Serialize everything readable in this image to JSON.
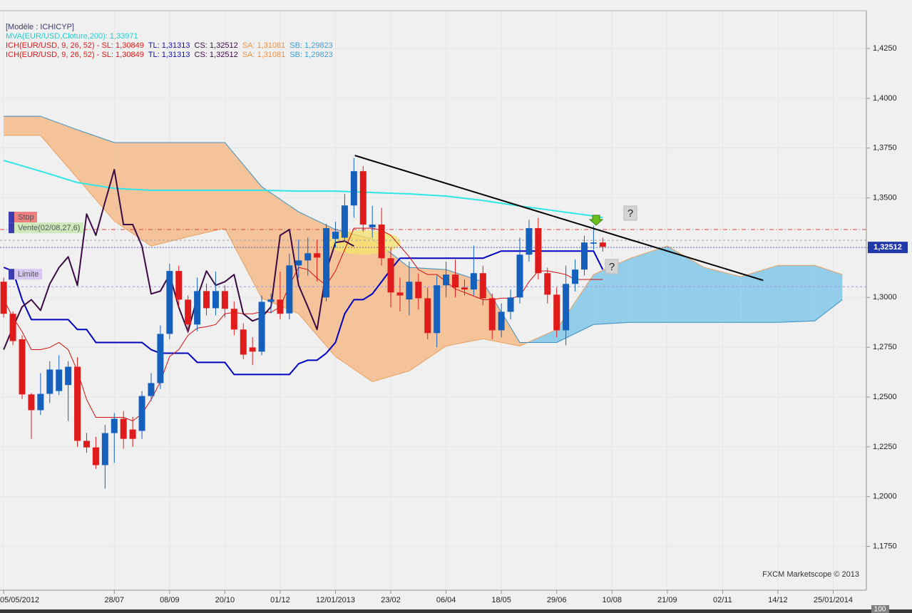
{
  "chart_data": {
    "type": "candlestick",
    "header": [
      [
        {
          "text": "[Modèle : ICHICYP]",
          "color": "#3a3a6a"
        }
      ],
      [
        {
          "text": "MVA(EUR/USD,Cloture,200): 1,33971",
          "color": "#22cccc"
        }
      ],
      [
        {
          "text": "ICH(EUR/USD, 9, 26, 52) -  SL: 1,30849",
          "color": "#e01818"
        },
        {
          "text": "TL: 1,31313",
          "color": "#1010b0"
        },
        {
          "text": "CS: 1,32512",
          "color": "#3b0a45"
        },
        {
          "text": "SA: 1,31081",
          "color": "#f09040"
        },
        {
          "text": "SB: 1,29823",
          "color": "#3aa0d8"
        }
      ],
      [
        {
          "text": "ICH(EUR/USD, 9, 26, 52) -  SL: 1,30849",
          "color": "#e01818"
        },
        {
          "text": "TL: 1,31313",
          "color": "#1010b0"
        },
        {
          "text": "CS: 1,32512",
          "color": "#3b0a45"
        },
        {
          "text": "SA: 1,31081",
          "color": "#f09040"
        },
        {
          "text": "SB: 1,29823",
          "color": "#3aa0d8"
        }
      ]
    ],
    "watermark": "FXCM Marketscope © 2013",
    "scale_box": "100",
    "grid": true,
    "xlim": [
      -0.4,
      93.6
    ],
    "xticks": [
      {
        "value": 0,
        "label": "05/05/2012"
      },
      {
        "value": 12,
        "label": "28/07"
      },
      {
        "value": 18,
        "label": "08/09"
      },
      {
        "value": 24,
        "label": "20/10"
      },
      {
        "value": 30,
        "label": "01/12"
      },
      {
        "value": 36,
        "label": "12/01/2013"
      },
      {
        "value": 42,
        "label": "23/02"
      },
      {
        "value": 48,
        "label": "06/04"
      },
      {
        "value": 54,
        "label": "18/05"
      },
      {
        "value": 60,
        "label": "29/06"
      },
      {
        "value": 66,
        "label": "10/08"
      },
      {
        "value": 72,
        "label": "21/09"
      },
      {
        "value": 78,
        "label": "02/11"
      },
      {
        "value": 84,
        "label": "14/12"
      },
      {
        "value": 90,
        "label": "25/01/2014"
      }
    ],
    "ylim": [
      1.153,
      1.444
    ],
    "yticks": [
      {
        "value": 1.175,
        "label": "1,1750"
      },
      {
        "value": 1.2,
        "label": "1,2000"
      },
      {
        "value": 1.225,
        "label": "1,2250"
      },
      {
        "value": 1.25,
        "label": "1,2500"
      },
      {
        "value": 1.275,
        "label": "1,2750"
      },
      {
        "value": 1.3,
        "label": "1,3000"
      },
      {
        "value": 1.325,
        "label": "1,3250"
      },
      {
        "value": 1.35,
        "label": "1,3500"
      },
      {
        "value": 1.375,
        "label": "1,3750"
      },
      {
        "value": 1.4,
        "label": "1,4000"
      },
      {
        "value": 1.425,
        "label": "1,4250"
      }
    ],
    "cloud": {
      "x": [
        0,
        4,
        8,
        12,
        16,
        20,
        24,
        28,
        32,
        36,
        40,
        44,
        48,
        52,
        56,
        60,
        64,
        68,
        72,
        76,
        80,
        84,
        88,
        91
      ],
      "senkou_a": [
        1.3814,
        1.3814,
        1.3599,
        1.3384,
        1.3258,
        1.3305,
        1.3348,
        1.2996,
        1.2918,
        1.2703,
        1.2577,
        1.2631,
        1.2756,
        1.2792,
        1.2756,
        1.2839,
        1.3115,
        1.3197,
        1.3258,
        1.3151,
        1.3104,
        1.3161,
        1.3161,
        1.3115
      ],
      "senkou_b": [
        1.391,
        1.391,
        1.3842,
        1.3778,
        1.3778,
        1.3778,
        1.3778,
        1.3556,
        1.343,
        1.3341,
        1.3294,
        1.3151,
        1.314,
        1.3079,
        1.2774,
        1.2774,
        1.2864,
        1.2875,
        1.2875,
        1.2875,
        1.2875,
        1.2875,
        1.2882,
        1.2989
      ],
      "bear_color": "#f5c39a",
      "bull_color": "#92cdea",
      "a_edge_color": "#e8a060",
      "b_edge_color": "#3a8fc0"
    },
    "lines": [
      {
        "color": "#2ee6e6",
        "width": 2,
        "x": [
          0,
          4,
          8,
          12,
          16,
          20,
          24,
          28,
          32,
          36,
          40,
          44,
          48,
          52,
          56,
          60,
          64,
          65
        ],
        "values": [
          1.3688,
          1.3634,
          1.3577,
          1.3548,
          1.3538,
          1.3538,
          1.3538,
          1.3538,
          1.3534,
          1.3534,
          1.3527,
          1.352,
          1.3509,
          1.3487,
          1.3459,
          1.3434,
          1.3409,
          1.3401
        ]
      },
      {
        "color": "#0000c0",
        "width": 2,
        "values": [
          1.3151,
          1.3133,
          1.2989,
          1.2889,
          1.2889,
          1.2889,
          1.2889,
          1.2889,
          1.2839,
          1.2839,
          1.2774,
          1.2774,
          1.2774,
          1.2774,
          1.2774,
          1.2774,
          1.2738,
          1.272,
          1.272,
          1.272,
          1.272,
          1.2674,
          1.2674,
          1.2674,
          1.2674,
          1.2613,
          1.2613,
          1.2613,
          1.2613,
          1.2613,
          1.2613,
          1.2613,
          1.2667,
          1.2685,
          1.2685,
          1.272,
          1.2774,
          1.2918,
          1.2989,
          1.2989,
          1.3018,
          1.3079,
          1.314,
          1.3197,
          1.3197,
          1.3197,
          1.3197,
          1.3197,
          1.3197,
          1.3197,
          1.3197,
          1.3197,
          1.3197,
          1.3215,
          1.3233,
          1.3233,
          1.3233,
          1.3233,
          1.3233,
          1.3233,
          1.3233,
          1.3233,
          1.3233,
          1.3233,
          1.3233,
          1.314
        ]
      },
      {
        "color": "#d01010",
        "width": 1,
        "values": [
          1.2989,
          1.29,
          1.2828,
          1.2738,
          1.2738,
          1.2749,
          1.2774,
          1.2738,
          1.2631,
          1.2487,
          1.2398,
          1.2398,
          1.2398,
          1.2398,
          1.238,
          1.2416,
          1.2487,
          1.2577,
          1.2703,
          1.2738,
          1.281,
          1.2846,
          1.2853,
          1.2864,
          1.2918,
          1.2925,
          1.2918,
          1.2918,
          1.2928,
          1.2925,
          1.2953,
          1.3061,
          1.3151,
          1.314,
          1.3097,
          1.3061,
          1.3133,
          1.324,
          1.3348,
          1.3348,
          1.3348,
          1.3337,
          1.3312,
          1.3258,
          1.3204,
          1.314,
          1.3115,
          1.3115,
          1.3079,
          1.3043,
          1.3025,
          1.3007,
          1.2989,
          1.2989,
          1.2996,
          1.2996,
          1.3007,
          1.3079,
          1.3133,
          1.3133,
          1.3125,
          1.3115,
          1.309,
          1.309,
          1.309,
          1.309
        ]
      },
      {
        "color": "#3b0a45",
        "width": 2,
        "values": [
          1.2738,
          1.285,
          1.2953,
          1.2989,
          1.2935,
          1.3068,
          1.315,
          1.3204,
          1.3061,
          1.3419,
          1.3312,
          1.348,
          1.3642,
          1.3366,
          1.3366,
          1.3258,
          1.3018,
          1.3032,
          1.3115,
          1.295,
          1.2828,
          1.3,
          1.3133,
          1.3061,
          1.3079,
          1.3115,
          1.2918,
          1.2882,
          1.29,
          1.2953,
          1.3312,
          1.3341,
          1.3061,
          1.2953,
          1.2839,
          1.3133,
          1.3276,
          1.3283,
          1.3258
        ]
      }
    ],
    "candles": {
      "up_color": "#1560bd",
      "down_color": "#e01b1b",
      "open": [
        1.3079,
        1.2918,
        1.279,
        1.2513,
        1.2434,
        1.2516,
        1.253,
        1.256,
        1.2652,
        1.228,
        1.2247,
        1.2158,
        1.2319,
        1.2391,
        1.2337,
        1.233,
        1.2505,
        1.257,
        1.2817,
        1.3133,
        1.2989,
        1.2864,
        1.3032,
        1.2946,
        1.3032,
        1.2943,
        1.2839,
        1.2749,
        1.2728,
        1.2978,
        1.2989,
        1.292,
        1.3161,
        1.3186,
        1.3222,
        1.3,
        1.3294,
        1.33,
        1.3462,
        1.3634,
        1.3352,
        1.3366,
        1.3197,
        1.3025,
        1.299,
        1.3079,
        1.2996,
        1.2821,
        1.3061,
        1.3115,
        1.305,
        1.304,
        1.3122,
        1.2996,
        1.2835,
        1.2928,
        1.3,
        1.3215,
        1.3348,
        1.3122,
        1.3014,
        1.2835,
        1.3068,
        1.314,
        1.327,
        1.3276
      ],
      "high": [
        1.31,
        1.293,
        1.281,
        1.252,
        1.262,
        1.268,
        1.271,
        1.268,
        1.27,
        1.232,
        1.23,
        1.236,
        1.242,
        1.243,
        1.24,
        1.253,
        1.262,
        1.286,
        1.317,
        1.316,
        1.301,
        1.31,
        1.307,
        1.313,
        1.306,
        1.298,
        1.287,
        1.28,
        1.301,
        1.302,
        1.313,
        1.322,
        1.329,
        1.33,
        1.329,
        1.337,
        1.338,
        1.352,
        1.37,
        1.366,
        1.346,
        1.345,
        1.325,
        1.31,
        1.318,
        1.312,
        1.305,
        1.311,
        1.318,
        1.319,
        1.309,
        1.326,
        1.316,
        1.302,
        1.297,
        1.304,
        1.33,
        1.339,
        1.34,
        1.315,
        1.305,
        1.316,
        1.319,
        1.331,
        1.336,
        1.33
      ],
      "low": [
        1.29,
        1.276,
        1.249,
        1.229,
        1.241,
        1.247,
        1.251,
        1.238,
        1.225,
        1.222,
        1.214,
        1.204,
        1.217,
        1.224,
        1.225,
        1.229,
        1.248,
        1.254,
        1.279,
        1.295,
        1.282,
        1.283,
        1.291,
        1.291,
        1.29,
        1.281,
        1.269,
        1.266,
        1.271,
        1.292,
        1.289,
        1.289,
        1.31,
        1.311,
        1.308,
        1.298,
        1.325,
        1.328,
        1.34,
        1.333,
        1.33,
        1.316,
        1.295,
        1.293,
        1.291,
        1.294,
        1.279,
        1.275,
        1.3,
        1.3,
        1.301,
        1.301,
        1.296,
        1.279,
        1.28,
        1.289,
        1.297,
        1.318,
        1.309,
        1.297,
        1.28,
        1.276,
        1.303,
        1.311,
        1.324,
        1.323
      ],
      "close": [
        1.2918,
        1.2781,
        1.2513,
        1.2434,
        1.2516,
        1.2638,
        1.2638,
        1.2652,
        1.228,
        1.2247,
        1.2158,
        1.2319,
        1.2391,
        1.229,
        1.229,
        1.2505,
        1.257,
        1.2817,
        1.3133,
        1.2989,
        1.2864,
        1.3032,
        1.2946,
        1.3032,
        1.2943,
        1.2839,
        1.2713,
        1.2728,
        1.2978,
        1.299,
        1.2918,
        1.3161,
        1.3186,
        1.3222,
        1.32,
        1.3348,
        1.333,
        1.3462,
        1.3634,
        1.3366,
        1.3366,
        1.3197,
        1.3025,
        1.301,
        1.3079,
        1.2996,
        1.2821,
        1.3061,
        1.3115,
        1.305,
        1.304,
        1.3122,
        1.2996,
        1.2835,
        1.2928,
        1.3,
        1.3215,
        1.3348,
        1.3122,
        1.3014,
        1.2835,
        1.3068,
        1.314,
        1.3276,
        1.3276,
        1.3254
      ]
    },
    "trendline": {
      "x": [
        38.1,
        82.4
      ],
      "values": [
        1.3713,
        1.3086
      ],
      "color": "#000000"
    },
    "levels": [
      {
        "label": "Stop",
        "value": 1.3341,
        "color": "#e04040",
        "box_color": "#f08080"
      },
      {
        "label": "Vente(02/08,27,6)",
        "value": 1.3287,
        "color": "#a0a0a0",
        "box_color": "#cfe8bc"
      },
      {
        "label": "Limite",
        "value": 1.3054,
        "color": "#9a9ad8",
        "box_color": "#d6c8f2"
      }
    ],
    "price": {
      "value": 1.32512,
      "label": "1,32512",
      "color": "#2038a8"
    },
    "annotations": [
      "?",
      "?"
    ]
  }
}
